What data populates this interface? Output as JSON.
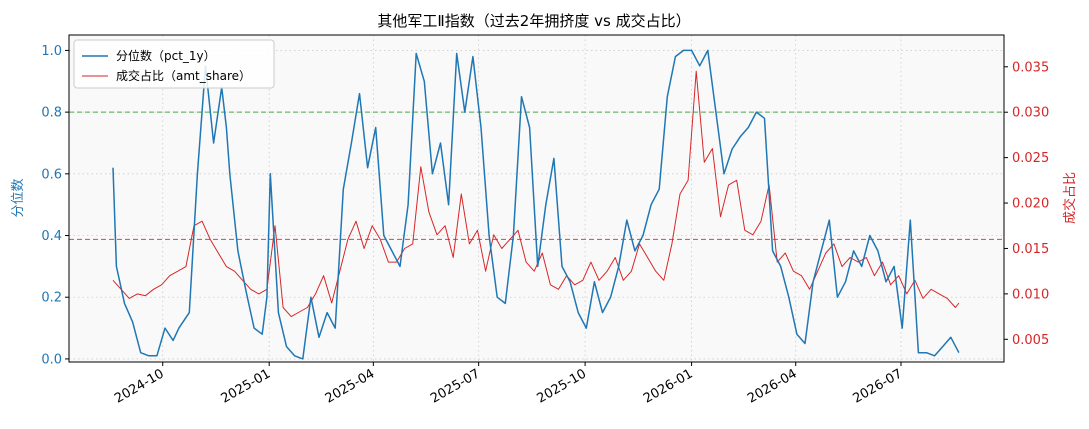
{
  "chart_data": {
    "type": "line",
    "title": "其他军工Ⅱ指数（过去2年拥挤度 vs 成交占比）",
    "ylabel_left": "分位数",
    "ylabel_right": "成交占比",
    "ylim_left": [
      -0.01,
      1.05
    ],
    "ylim_right": [
      0.0025,
      0.0385
    ],
    "xlim": [
      "2024-07-12",
      "2026-09-28"
    ],
    "grid": true,
    "legend_position": "top-left",
    "x_ticks": [
      "2024-10",
      "2025-01",
      "2025-04",
      "2025-07",
      "2025-10",
      "2026-01",
      "2026-04",
      "2026-07"
    ],
    "y_ticks_left": [
      0.0,
      0.2,
      0.4,
      0.6,
      0.8,
      1.0
    ],
    "y_ticks_right": [
      0.005,
      0.01,
      0.015,
      0.02,
      0.025,
      0.03,
      0.035
    ],
    "reference_lines": [
      {
        "axis": "left",
        "value": 0.8,
        "color": "#2ca02c",
        "style": "dashed"
      },
      {
        "axis": "right",
        "value": 0.016,
        "color": "#d62728",
        "style": "dashed"
      }
    ],
    "colors": {
      "pct": "#1f77b4",
      "share": "#d62728"
    },
    "series": [
      {
        "name": "分位数（pct_1y）",
        "axis": "left",
        "x": [
          "2024-08-19",
          "2024-08-22",
          "2024-08-29",
          "2024-09-05",
          "2024-09-12",
          "2024-09-19",
          "2024-09-26",
          "2024-10-03",
          "2024-10-10",
          "2024-10-15",
          "2024-10-24",
          "2024-10-31",
          "2024-11-07",
          "2024-11-14",
          "2024-11-21",
          "2024-11-25",
          "2024-11-28",
          "2024-12-05",
          "2024-12-12",
          "2024-12-19",
          "2024-12-26",
          "2024-12-30",
          "2025-01-02",
          "2025-01-09",
          "2025-01-16",
          "2025-01-23",
          "2025-01-30",
          "2025-02-06",
          "2025-02-13",
          "2025-02-20",
          "2025-02-27",
          "2025-03-06",
          "2025-03-13",
          "2025-03-20",
          "2025-03-27",
          "2025-04-03",
          "2025-04-10",
          "2025-04-17",
          "2025-04-24",
          "2025-05-01",
          "2025-05-08",
          "2025-05-15",
          "2025-05-22",
          "2025-05-29",
          "2025-06-05",
          "2025-06-12",
          "2025-06-19",
          "2025-06-26",
          "2025-07-03",
          "2025-07-10",
          "2025-07-17",
          "2025-07-24",
          "2025-07-31",
          "2025-08-07",
          "2025-08-14",
          "2025-08-21",
          "2025-08-28",
          "2025-09-04",
          "2025-09-11",
          "2025-09-18",
          "2025-09-25",
          "2025-10-02",
          "2025-10-09",
          "2025-10-16",
          "2025-10-23",
          "2025-10-30",
          "2025-11-06",
          "2025-11-13",
          "2025-11-20",
          "2025-11-27",
          "2025-12-04",
          "2025-12-11",
          "2025-12-18",
          "2025-12-25",
          "2026-01-01",
          "2026-01-08",
          "2026-01-15",
          "2026-01-22",
          "2026-01-29",
          "2026-02-05",
          "2026-02-12",
          "2026-02-19",
          "2026-02-26",
          "2026-03-05",
          "2026-03-12",
          "2026-03-19",
          "2026-03-26",
          "2026-04-02",
          "2026-04-09",
          "2026-04-16",
          "2026-04-23",
          "2026-04-30",
          "2026-05-07",
          "2026-05-14",
          "2026-05-21",
          "2026-05-28",
          "2026-06-04",
          "2026-06-11",
          "2026-06-18",
          "2026-06-25",
          "2026-07-02",
          "2026-07-09",
          "2026-07-16",
          "2026-07-23",
          "2026-07-30",
          "2026-08-06",
          "2026-08-13",
          "2026-08-20"
        ],
        "values": [
          0.62,
          0.3,
          0.18,
          0.12,
          0.02,
          0.01,
          0.01,
          0.1,
          0.06,
          0.1,
          0.15,
          0.6,
          0.95,
          0.7,
          0.88,
          0.75,
          0.6,
          0.35,
          0.22,
          0.1,
          0.08,
          0.2,
          0.6,
          0.15,
          0.04,
          0.01,
          0.0,
          0.2,
          0.07,
          0.15,
          0.1,
          0.55,
          0.7,
          0.86,
          0.62,
          0.75,
          0.4,
          0.35,
          0.3,
          0.5,
          0.99,
          0.9,
          0.6,
          0.7,
          0.5,
          0.99,
          0.8,
          0.98,
          0.75,
          0.4,
          0.2,
          0.18,
          0.4,
          0.85,
          0.75,
          0.3,
          0.5,
          0.65,
          0.3,
          0.25,
          0.15,
          0.1,
          0.25,
          0.15,
          0.2,
          0.3,
          0.45,
          0.35,
          0.4,
          0.5,
          0.55,
          0.85,
          0.98,
          1.0,
          1.0,
          0.95,
          1.0,
          0.8,
          0.6,
          0.68,
          0.72,
          0.75,
          0.8,
          0.78,
          0.35,
          0.3,
          0.2,
          0.08,
          0.05,
          0.25,
          0.35,
          0.45,
          0.2,
          0.25,
          0.35,
          0.3,
          0.4,
          0.35,
          0.25,
          0.3,
          0.1,
          0.45,
          0.02,
          0.02,
          0.01,
          0.04,
          0.07,
          0.02
        ]
      },
      {
        "name": "成交占比（amt_share）",
        "axis": "right",
        "x": [
          "2024-08-19",
          "2024-08-26",
          "2024-09-02",
          "2024-09-09",
          "2024-09-16",
          "2024-09-23",
          "2024-09-30",
          "2024-10-07",
          "2024-10-14",
          "2024-10-21",
          "2024-10-28",
          "2024-11-04",
          "2024-11-11",
          "2024-11-18",
          "2024-11-25",
          "2024-12-02",
          "2024-12-09",
          "2024-12-16",
          "2024-12-23",
          "2024-12-30",
          "2025-01-06",
          "2025-01-13",
          "2025-01-20",
          "2025-01-27",
          "2025-02-03",
          "2025-02-10",
          "2025-02-17",
          "2025-02-24",
          "2025-03-03",
          "2025-03-10",
          "2025-03-17",
          "2025-03-24",
          "2025-03-31",
          "2025-04-07",
          "2025-04-14",
          "2025-04-21",
          "2025-04-28",
          "2025-05-05",
          "2025-05-12",
          "2025-05-19",
          "2025-05-26",
          "2025-06-02",
          "2025-06-09",
          "2025-06-16",
          "2025-06-23",
          "2025-06-30",
          "2025-07-07",
          "2025-07-14",
          "2025-07-21",
          "2025-07-28",
          "2025-08-04",
          "2025-08-11",
          "2025-08-18",
          "2025-08-25",
          "2025-09-01",
          "2025-09-08",
          "2025-09-15",
          "2025-09-22",
          "2025-09-29",
          "2025-10-06",
          "2025-10-13",
          "2025-10-20",
          "2025-10-27",
          "2025-11-03",
          "2025-11-10",
          "2025-11-17",
          "2025-11-24",
          "2025-12-01",
          "2025-12-08",
          "2025-12-15",
          "2025-12-22",
          "2025-12-29",
          "2026-01-05",
          "2026-01-12",
          "2026-01-19",
          "2026-01-26",
          "2026-02-02",
          "2026-02-09",
          "2026-02-16",
          "2026-02-23",
          "2026-03-02",
          "2026-03-09",
          "2026-03-16",
          "2026-03-23",
          "2026-03-30",
          "2026-04-06",
          "2026-04-13",
          "2026-04-20",
          "2026-04-27",
          "2026-05-04",
          "2026-05-11",
          "2026-05-18",
          "2026-05-25",
          "2026-06-01",
          "2026-06-08",
          "2026-06-15",
          "2026-06-22",
          "2026-06-29",
          "2026-07-06",
          "2026-07-13",
          "2026-07-20",
          "2026-07-27",
          "2026-08-03",
          "2026-08-10",
          "2026-08-17",
          "2026-08-20"
        ],
        "values": [
          0.0115,
          0.0105,
          0.0095,
          0.01,
          0.0098,
          0.0105,
          0.011,
          0.012,
          0.0125,
          0.013,
          0.0175,
          0.018,
          0.016,
          0.0145,
          0.013,
          0.0125,
          0.0115,
          0.0105,
          0.01,
          0.0105,
          0.0175,
          0.0085,
          0.0075,
          0.008,
          0.0085,
          0.01,
          0.012,
          0.009,
          0.0125,
          0.016,
          0.018,
          0.015,
          0.0175,
          0.016,
          0.0135,
          0.0135,
          0.015,
          0.0155,
          0.024,
          0.019,
          0.0165,
          0.0175,
          0.014,
          0.021,
          0.0155,
          0.017,
          0.0125,
          0.0165,
          0.015,
          0.016,
          0.017,
          0.0135,
          0.0125,
          0.0145,
          0.011,
          0.0105,
          0.012,
          0.011,
          0.0115,
          0.0135,
          0.0115,
          0.0125,
          0.014,
          0.0115,
          0.0125,
          0.0155,
          0.014,
          0.0125,
          0.0115,
          0.0155,
          0.021,
          0.0225,
          0.0345,
          0.0245,
          0.026,
          0.0185,
          0.022,
          0.0225,
          0.017,
          0.0165,
          0.018,
          0.022,
          0.0135,
          0.0145,
          0.0125,
          0.012,
          0.0105,
          0.0125,
          0.0145,
          0.0155,
          0.013,
          0.014,
          0.0135,
          0.014,
          0.012,
          0.0135,
          0.011,
          0.012,
          0.01,
          0.0115,
          0.0095,
          0.0105,
          0.01,
          0.0095,
          0.0085,
          0.009
        ]
      }
    ]
  }
}
